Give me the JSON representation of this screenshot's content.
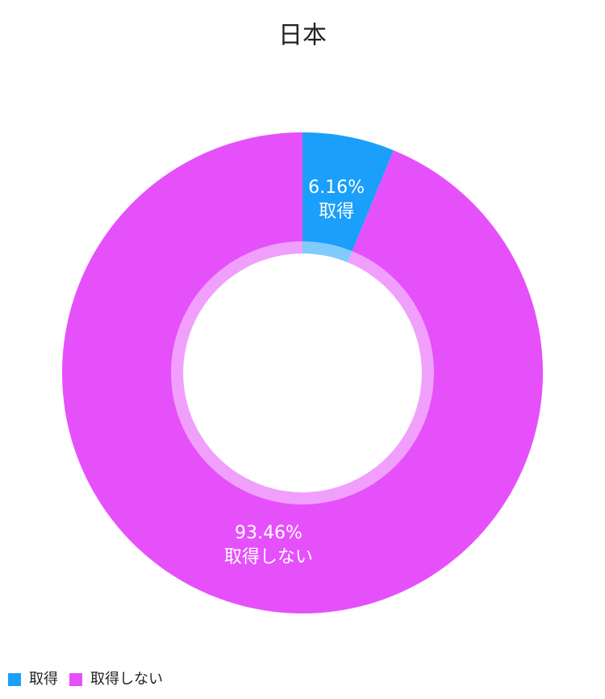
{
  "chart_data": {
    "type": "donut",
    "title": "日本",
    "categories": [
      "取得",
      "取得しない"
    ],
    "values": [
      6.16,
      93.46
    ],
    "value_labels": [
      "6.16%",
      "93.46%"
    ],
    "colors": [
      "#1a9ffa",
      "#e650fa"
    ],
    "legend": "bottom-left"
  }
}
